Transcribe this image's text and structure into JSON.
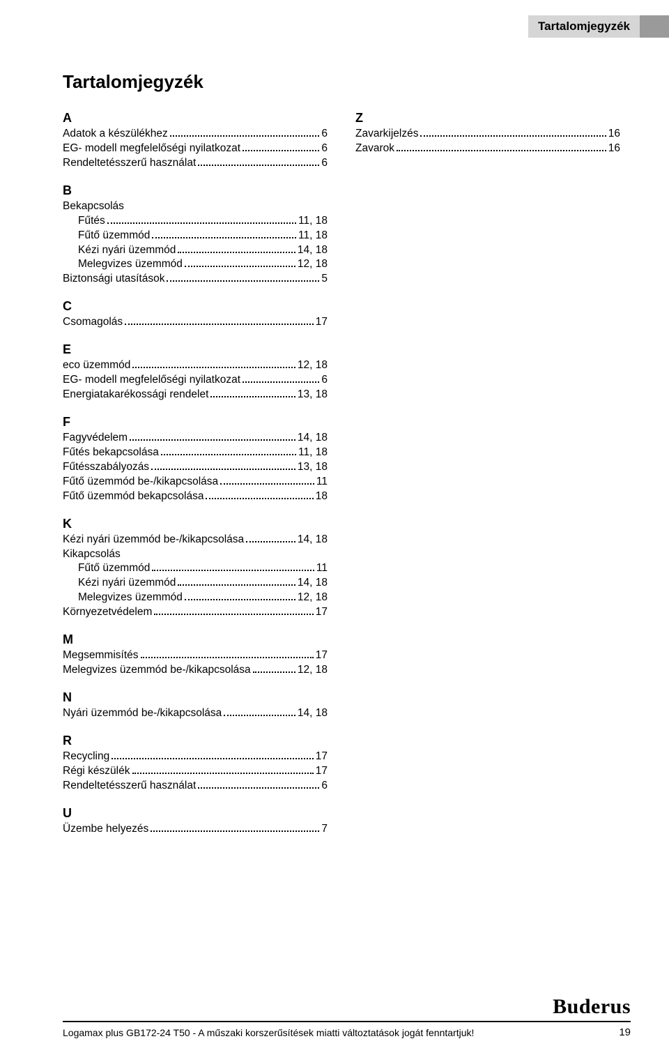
{
  "header": {
    "tab_title": "Tartalomjegyzék"
  },
  "title": "Tartalomjegyzék",
  "brand": "Buderus",
  "footer": {
    "text": "Logamax plus GB172-24 T50 - A műszaki korszerűsítések miatti változtatások jogát fenntartjuk!",
    "page_number": "19"
  },
  "index_left": [
    {
      "letter": "A",
      "entries": [
        {
          "label": "Adatok a készülékhez",
          "page": "6"
        },
        {
          "label": "EG- modell megfelelőségi nyilatkozat",
          "page": "6"
        },
        {
          "label": "Rendeltetésszerű használat",
          "page": "6"
        }
      ]
    },
    {
      "letter": "B",
      "entries": [
        {
          "label": "Bekapcsolás",
          "sub": true
        },
        {
          "label": "Fűtés",
          "page": "11, 18",
          "indent": true
        },
        {
          "label": "Fűtő üzemmód",
          "page": "11, 18",
          "indent": true
        },
        {
          "label": "Kézi nyári üzemmód",
          "page": "14, 18",
          "indent": true
        },
        {
          "label": "Melegvizes üzemmód",
          "page": "12, 18",
          "indent": true
        },
        {
          "label": "Biztonsági utasítások",
          "page": "5"
        }
      ]
    },
    {
      "letter": "C",
      "entries": [
        {
          "label": "Csomagolás",
          "page": "17"
        }
      ]
    },
    {
      "letter": "E",
      "entries": [
        {
          "label": "eco üzemmód",
          "page": "12, 18"
        },
        {
          "label": "EG- modell megfelelőségi nyilatkozat",
          "page": "6"
        },
        {
          "label": "Energiatakarékossági rendelet",
          "page": "13, 18"
        }
      ]
    },
    {
      "letter": "F",
      "entries": [
        {
          "label": "Fagyvédelem",
          "page": "14, 18"
        },
        {
          "label": "Fűtés bekapcsolása",
          "page": "11, 18"
        },
        {
          "label": "Fűtésszabályozás",
          "page": "13, 18"
        },
        {
          "label": "Fűtő üzemmód be-/kikapcsolása",
          "page": "11"
        },
        {
          "label": "Fűtő üzemmód bekapcsolása",
          "page": "18"
        }
      ]
    },
    {
      "letter": "K",
      "entries": [
        {
          "label": "Kézi nyári üzemmód be-/kikapcsolása",
          "page": "14, 18"
        },
        {
          "label": "Kikapcsolás",
          "sub": true
        },
        {
          "label": "Fűtő üzemmód",
          "page": "11",
          "indent": true
        },
        {
          "label": "Kézi nyári üzemmód",
          "page": "14, 18",
          "indent": true
        },
        {
          "label": "Melegvizes üzemmód",
          "page": "12, 18",
          "indent": true
        },
        {
          "label": "Környezetvédelem",
          "page": "17"
        }
      ]
    },
    {
      "letter": "M",
      "entries": [
        {
          "label": "Megsemmisítés",
          "page": "17"
        },
        {
          "label": "Melegvizes üzemmód be-/kikapcsolása",
          "page": "12, 18"
        }
      ]
    },
    {
      "letter": "N",
      "entries": [
        {
          "label": "Nyári üzemmód be-/kikapcsolása",
          "page": "14, 18"
        }
      ]
    },
    {
      "letter": "R",
      "entries": [
        {
          "label": "Recycling",
          "page": "17"
        },
        {
          "label": "Régi készülék",
          "page": "17"
        },
        {
          "label": "Rendeltetésszerű használat",
          "page": "6"
        }
      ]
    },
    {
      "letter": "U",
      "entries": [
        {
          "label": "Üzembe helyezés",
          "page": "7"
        }
      ]
    }
  ],
  "index_right": [
    {
      "letter": "Z",
      "entries": [
        {
          "label": "Zavarkijelzés",
          "page": "16"
        },
        {
          "label": "Zavarok",
          "page": "16"
        }
      ]
    }
  ]
}
